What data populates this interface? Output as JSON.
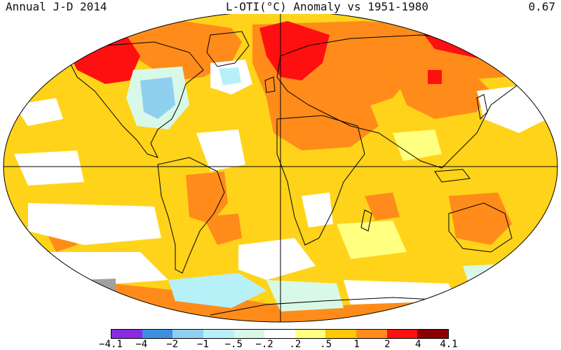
{
  "header": {
    "left": "Annual J-D 2014",
    "center": "L-OTI(°C) Anomaly vs 1951-1980",
    "right": "0.67"
  },
  "legend": {
    "colors": [
      "#8a2be2",
      "#3f8fe0",
      "#8fd0f0",
      "#b8f0f8",
      "#d8f8e8",
      "#ffffff",
      "#ffff80",
      "#ffc800",
      "#ff8c1a",
      "#ff1010",
      "#8b0000"
    ],
    "ticks": [
      "-4.1",
      "-4",
      "-2",
      "-1",
      "-.5",
      "-.2",
      ".2",
      ".5",
      "1",
      "2",
      "4",
      "4.1"
    ]
  },
  "map": {
    "background_color": "#ffd31a",
    "outline_color": "#000000"
  }
}
